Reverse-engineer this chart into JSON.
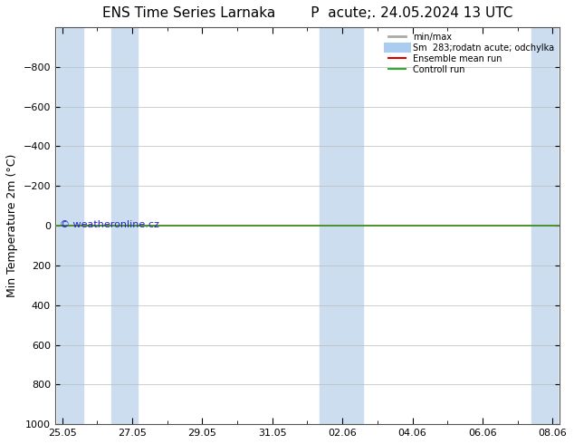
{
  "title_left": "ENS Time Series Larnaka",
  "title_right": "P  acute;. 24.05.2024 13 UTC",
  "ylabel": "Min Temperature 2m (°C)",
  "ylim_bottom": 1000,
  "ylim_top": -1000,
  "yticks": [
    -800,
    -600,
    -400,
    -200,
    0,
    200,
    400,
    600,
    800,
    1000
  ],
  "xtick_labels": [
    "25.05",
    "27.05",
    "29.05",
    "31.05",
    "02.06",
    "04.06",
    "06.06",
    "08.06"
  ],
  "xtick_positions": [
    0,
    2,
    4,
    6,
    8,
    10,
    12,
    14
  ],
  "x_total": 14,
  "shaded_columns": [
    {
      "x_start": -0.15,
      "x_end": 0.6
    },
    {
      "x_start": 1.4,
      "x_end": 2.15
    },
    {
      "x_start": 7.35,
      "x_end": 8.6
    },
    {
      "x_start": 13.4,
      "x_end": 14.15
    }
  ],
  "shaded_color": "#ccddf0",
  "grid_color": "#bbbbbb",
  "background_color": "#ffffff",
  "plot_bg_color": "#ffffff",
  "legend_labels": [
    "min/max",
    "Sm  283;rodatn acute; odchylka",
    "Ensemble mean run",
    "Controll run"
  ],
  "legend_colors": [
    "#aaaaaa",
    "#aaccee",
    "#dd0000",
    "#33aa33"
  ],
  "legend_lws": [
    2,
    8,
    1.5,
    1.5
  ],
  "horizontal_line_y": 0,
  "control_run_color": "#33aa33",
  "ensemble_mean_color": "#dd0000",
  "watermark_text": "© weatheronline.cz",
  "watermark_color": "#2222cc",
  "watermark_fontsize": 8,
  "title_fontsize": 11,
  "axis_fontsize": 8,
  "ylabel_fontsize": 9
}
